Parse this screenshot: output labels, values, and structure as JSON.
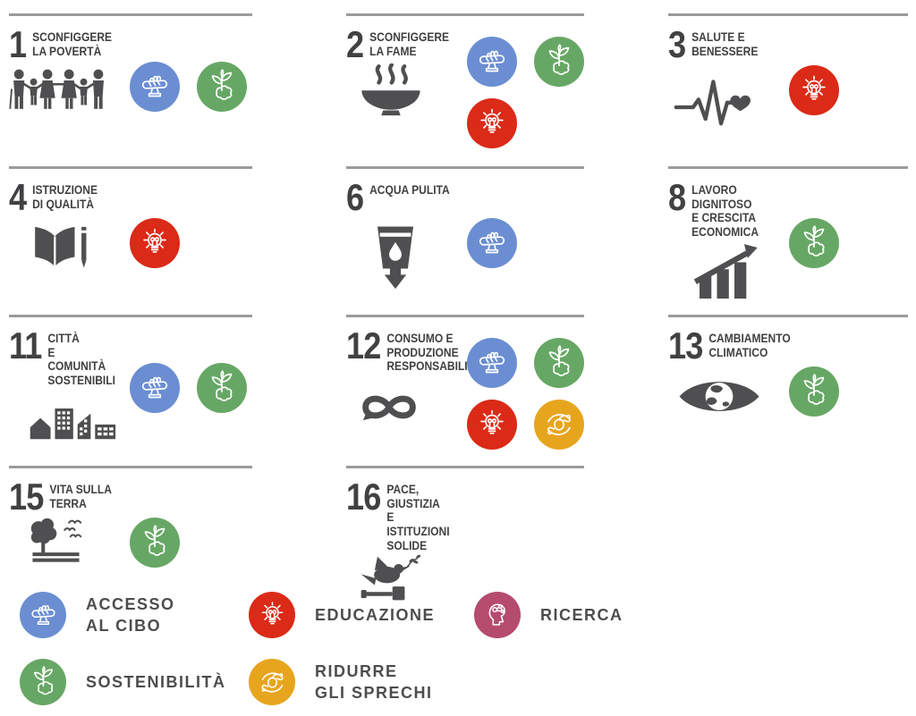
{
  "palette": {
    "badge_blue": "#6b8ed2",
    "badge_green": "#67a765",
    "badge_red": "#db2a17",
    "badge_yellow": "#e7a51e",
    "badge_magenta": "#b54b6d",
    "pictogram_gray": "#4f4f51",
    "title_gray": "#414042",
    "rule_gray": "#9b9b9b"
  },
  "badge_types": {
    "accesso": {
      "color": "#6b8ed2",
      "icon": "bread-hand-icon"
    },
    "sostenibilita": {
      "color": "#67a765",
      "icon": "sprout-icon"
    },
    "educazione": {
      "color": "#db2a17",
      "icon": "lightbulb-icon"
    },
    "sprechi": {
      "color": "#e7a51e",
      "icon": "hands-fruit-icon"
    },
    "ricerca": {
      "color": "#b54b6d",
      "icon": "head-research-icon"
    }
  },
  "goals": [
    {
      "number": "1",
      "title": "SCONFIGGERE\nLA POVERTÀ",
      "pictogram": "family-icon",
      "badges": [
        "accesso",
        "sostenibilita"
      ]
    },
    {
      "number": "2",
      "title": "SCONFIGGERE\nLA FAME",
      "pictogram": "soup-bowl-icon",
      "badges": [
        "accesso",
        "sostenibilita",
        "educazione"
      ]
    },
    {
      "number": "3",
      "title": "SALUTE E\nBENESSERE",
      "pictogram": "heartbeat-icon",
      "badges": [
        "educazione"
      ]
    },
    {
      "number": "4",
      "title": "ISTRUZIONE\nDI QUALITÀ",
      "pictogram": "open-book-icon",
      "badges": [
        "educazione"
      ]
    },
    {
      "number": "6",
      "title": "ACQUA PULITA",
      "pictogram": "water-glass-icon",
      "badges": [
        "accesso"
      ]
    },
    {
      "number": "8",
      "title": "LAVORO DIGNITOSO\nE CRESCITA\nECONOMICA",
      "pictogram": "growth-chart-icon",
      "badges": [
        "sostenibilita"
      ]
    },
    {
      "number": "11",
      "title": "CITTÀ\nE COMUNITÀ\nSOSTENIBILI",
      "pictogram": "city-icon",
      "badges": [
        "accesso",
        "sostenibilita"
      ]
    },
    {
      "number": "12",
      "title": "CONSUMO E\nPRODUZIONE\nRESPONSABILI",
      "pictogram": "infinity-icon",
      "badges": [
        "accesso",
        "sostenibilita",
        "educazione",
        "sprechi"
      ]
    },
    {
      "number": "13",
      "title": "CAMBIAMENTO\nCLIMATICO",
      "pictogram": "eye-globe-icon",
      "badges": [
        "sostenibilita"
      ]
    },
    {
      "number": "15",
      "title": "VITA SULLA\nTERRA",
      "pictogram": "tree-birds-icon",
      "badges": [
        "sostenibilita"
      ]
    },
    {
      "number": "16",
      "title": "PACE, GIUSTIZIA\nE ISTITUZIONI\nSOLIDE",
      "pictogram": "dove-gavel-icon",
      "badges": []
    }
  ],
  "legend": {
    "items": [
      {
        "key": "accesso",
        "label": "ACCESSO\nAL CIBO",
        "color": "#6b8ed2"
      },
      {
        "key": "educazione",
        "label": "EDUCAZIONE",
        "color": "#db2a17"
      },
      {
        "key": "ricerca",
        "label": "RICERCA",
        "color": "#b54b6d"
      },
      {
        "key": "sostenibilita",
        "label": "SOSTENIBILITÀ",
        "color": "#67a765"
      },
      {
        "key": "sprechi",
        "label": "RIDURRE\nGLI SPRECHI",
        "color": "#e7a51e"
      }
    ]
  }
}
